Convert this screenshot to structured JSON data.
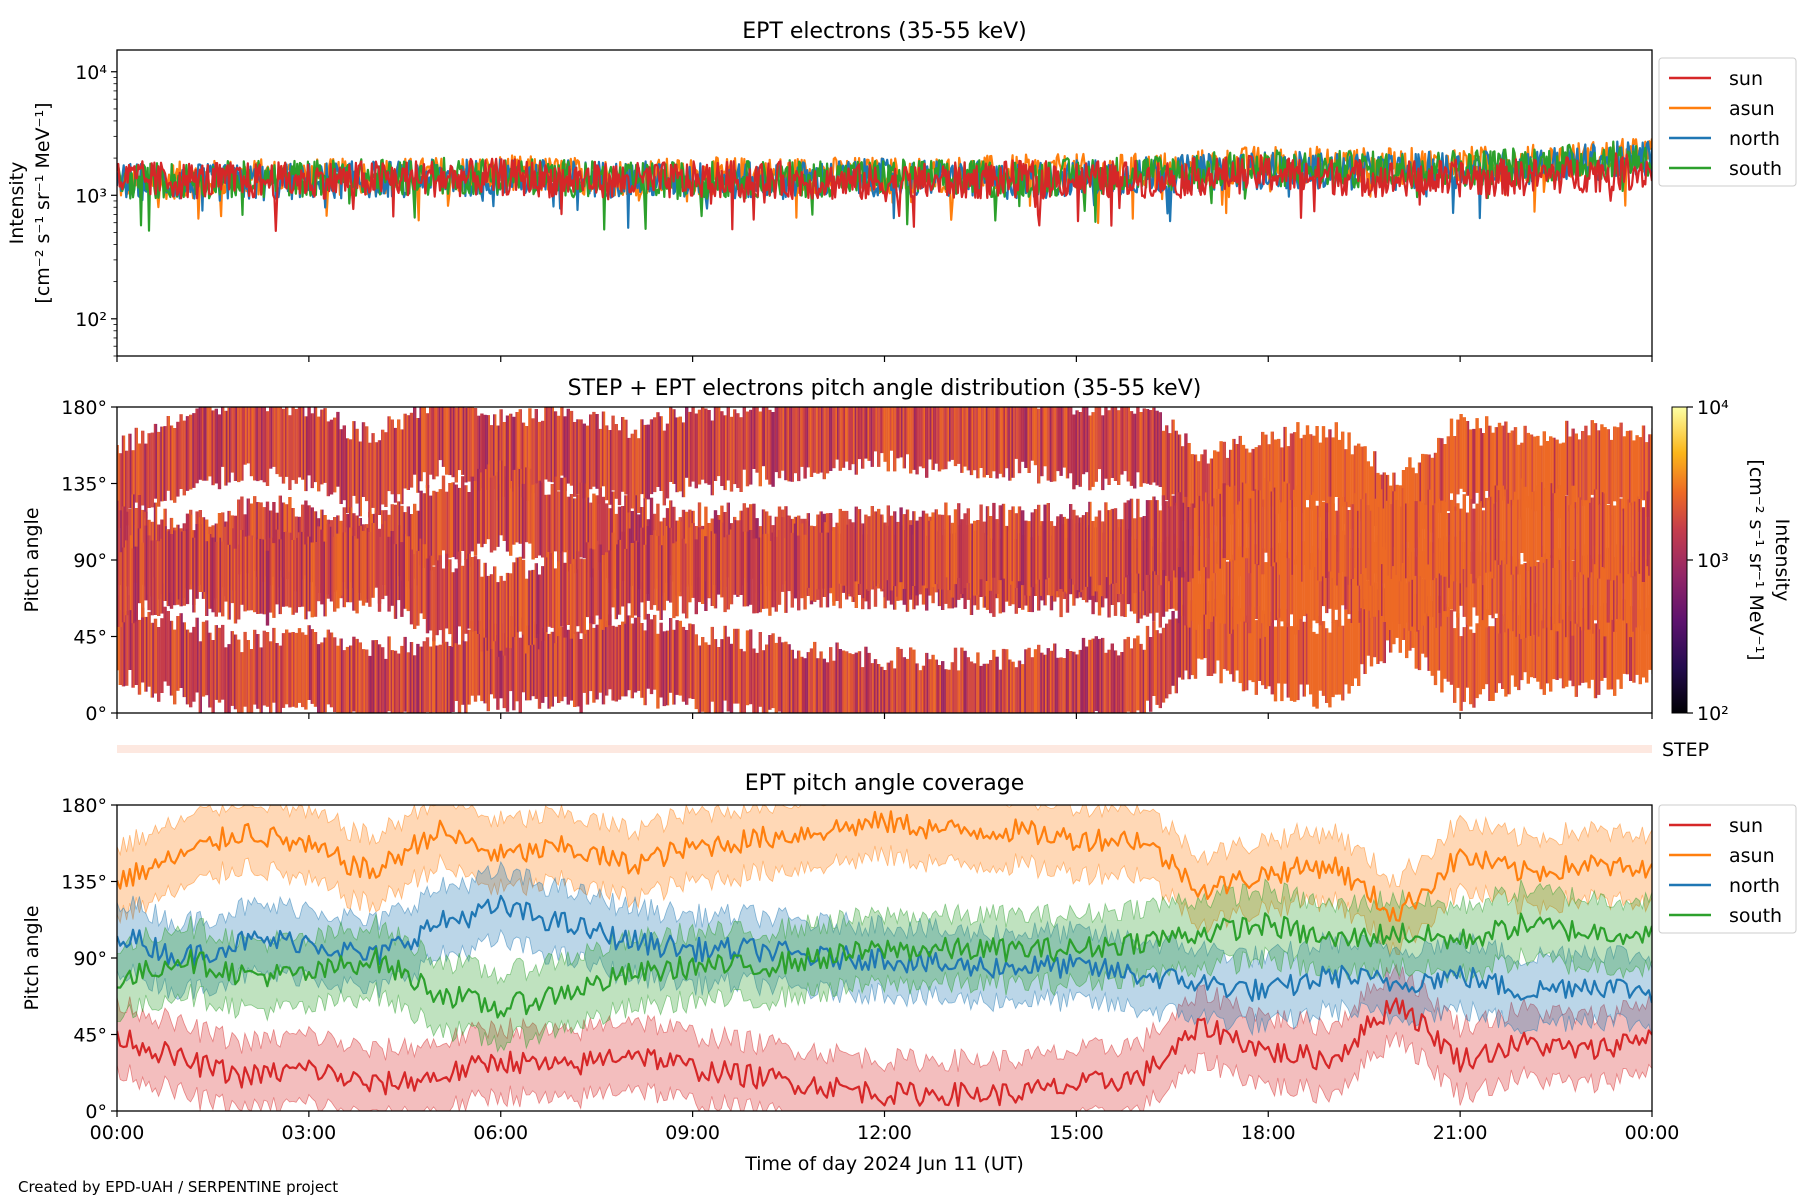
{
  "footer": "Created by EPD-UAH / SERPENTINE project",
  "xlabel": "Time of day 2024 Jun 11 (UT)",
  "xticks": [
    "00:00",
    "03:00",
    "06:00",
    "09:00",
    "12:00",
    "15:00",
    "18:00",
    "21:00",
    "00:00"
  ],
  "colors": {
    "sun": "#d62728",
    "asun": "#ff7f0e",
    "north": "#1f77b4",
    "south": "#2ca02c"
  },
  "chart_data": [
    {
      "type": "line",
      "title": "EPT electrons (35-55 keV)",
      "ylabel_line1": "Intensity",
      "ylabel_line2": "[cm⁻² s⁻¹ sr⁻¹ MeV⁻¹]",
      "yscale": "log",
      "ylim": [
        50,
        15000
      ],
      "yticks": [
        "10²",
        "10³",
        "10⁴"
      ],
      "xlim_hours": [
        0,
        24
      ],
      "legend": "outside-right",
      "series": [
        {
          "name": "sun",
          "color": "#d62728",
          "x_hours": [
            0,
            2,
            4,
            6,
            8,
            10,
            12,
            14,
            16,
            18,
            20,
            22,
            24
          ],
          "values": [
            1350,
            1300,
            1350,
            1400,
            1300,
            1350,
            1250,
            1350,
            1350,
            1500,
            1350,
            1400,
            1600
          ]
        },
        {
          "name": "asun",
          "color": "#ff7f0e",
          "x_hours": [
            0,
            2,
            4,
            6,
            8,
            10,
            12,
            14,
            16,
            18,
            20,
            22,
            24
          ],
          "values": [
            1250,
            1400,
            1400,
            1500,
            1400,
            1450,
            1450,
            1500,
            1550,
            1800,
            1700,
            1800,
            2100
          ]
        },
        {
          "name": "north",
          "color": "#1f77b4",
          "x_hours": [
            0,
            2,
            4,
            6,
            8,
            10,
            12,
            14,
            16,
            18,
            20,
            22,
            24
          ],
          "values": [
            1300,
            1250,
            1350,
            1400,
            1350,
            1300,
            1400,
            1300,
            1450,
            1600,
            1550,
            1700,
            2000
          ]
        },
        {
          "name": "south",
          "color": "#2ca02c",
          "x_hours": [
            0,
            2,
            4,
            6,
            8,
            10,
            12,
            14,
            16,
            18,
            20,
            22,
            24
          ],
          "values": [
            1300,
            1350,
            1400,
            1450,
            1300,
            1350,
            1400,
            1350,
            1500,
            1650,
            1600,
            1750,
            2000
          ]
        }
      ]
    },
    {
      "type": "heatmap",
      "title": "STEP + EPT electrons pitch angle distribution (35-55 keV)",
      "ylabel": "Pitch angle",
      "yticks": [
        "0°",
        "45°",
        "90°",
        "135°",
        "180°"
      ],
      "ylim": [
        0,
        180
      ],
      "colorbar": {
        "label_line1": "Intensity",
        "label_line2": "[cm⁻² s⁻¹ sr⁻¹ MeV⁻¹]",
        "scale": "log",
        "range": [
          100,
          10000
        ],
        "ticks": [
          "10²",
          "10³",
          "10⁴"
        ]
      },
      "step_label": "STEP"
    },
    {
      "type": "line",
      "title": "EPT pitch angle coverage",
      "ylabel": "Pitch angle",
      "yticks": [
        "0°",
        "45°",
        "90°",
        "135°",
        "180°"
      ],
      "ylim": [
        0,
        180
      ],
      "xlim_hours": [
        0,
        24
      ],
      "legend": "outside-right",
      "series": [
        {
          "name": "sun",
          "color": "#d62728",
          "x_hours": [
            0,
            1,
            2,
            3,
            4,
            5,
            6,
            7,
            8,
            9,
            10,
            11,
            12,
            13,
            14,
            15,
            16,
            17,
            18,
            19,
            20,
            21,
            22,
            23,
            24
          ],
          "values": [
            45,
            30,
            20,
            25,
            15,
            20,
            30,
            25,
            35,
            25,
            20,
            15,
            10,
            10,
            10,
            15,
            20,
            50,
            35,
            30,
            65,
            30,
            40,
            35,
            45
          ]
        },
        {
          "name": "asun",
          "color": "#ff7f0e",
          "x_hours": [
            0,
            1,
            2,
            3,
            4,
            5,
            6,
            7,
            8,
            9,
            10,
            11,
            12,
            13,
            14,
            15,
            16,
            17,
            18,
            19,
            20,
            21,
            22,
            23,
            24
          ],
          "values": [
            135,
            150,
            165,
            155,
            140,
            165,
            150,
            155,
            145,
            155,
            160,
            165,
            170,
            165,
            165,
            160,
            160,
            130,
            140,
            145,
            115,
            150,
            140,
            145,
            140
          ]
        },
        {
          "name": "north",
          "color": "#1f77b4",
          "x_hours": [
            0,
            1,
            2,
            3,
            4,
            5,
            6,
            7,
            8,
            9,
            10,
            11,
            12,
            13,
            14,
            15,
            16,
            17,
            18,
            19,
            20,
            21,
            22,
            23,
            24
          ],
          "values": [
            105,
            90,
            100,
            100,
            90,
            110,
            120,
            110,
            100,
            95,
            95,
            90,
            90,
            85,
            85,
            85,
            80,
            75,
            70,
            80,
            75,
            80,
            70,
            75,
            70
          ]
        },
        {
          "name": "south",
          "color": "#2ca02c",
          "x_hours": [
            0,
            1,
            2,
            3,
            4,
            5,
            6,
            7,
            8,
            9,
            10,
            11,
            12,
            13,
            14,
            15,
            16,
            17,
            18,
            19,
            20,
            21,
            22,
            23,
            24
          ],
          "values": [
            75,
            90,
            80,
            80,
            90,
            70,
            60,
            70,
            80,
            85,
            85,
            90,
            95,
            95,
            95,
            95,
            100,
            105,
            110,
            100,
            105,
            100,
            110,
            105,
            105
          ]
        }
      ]
    }
  ]
}
